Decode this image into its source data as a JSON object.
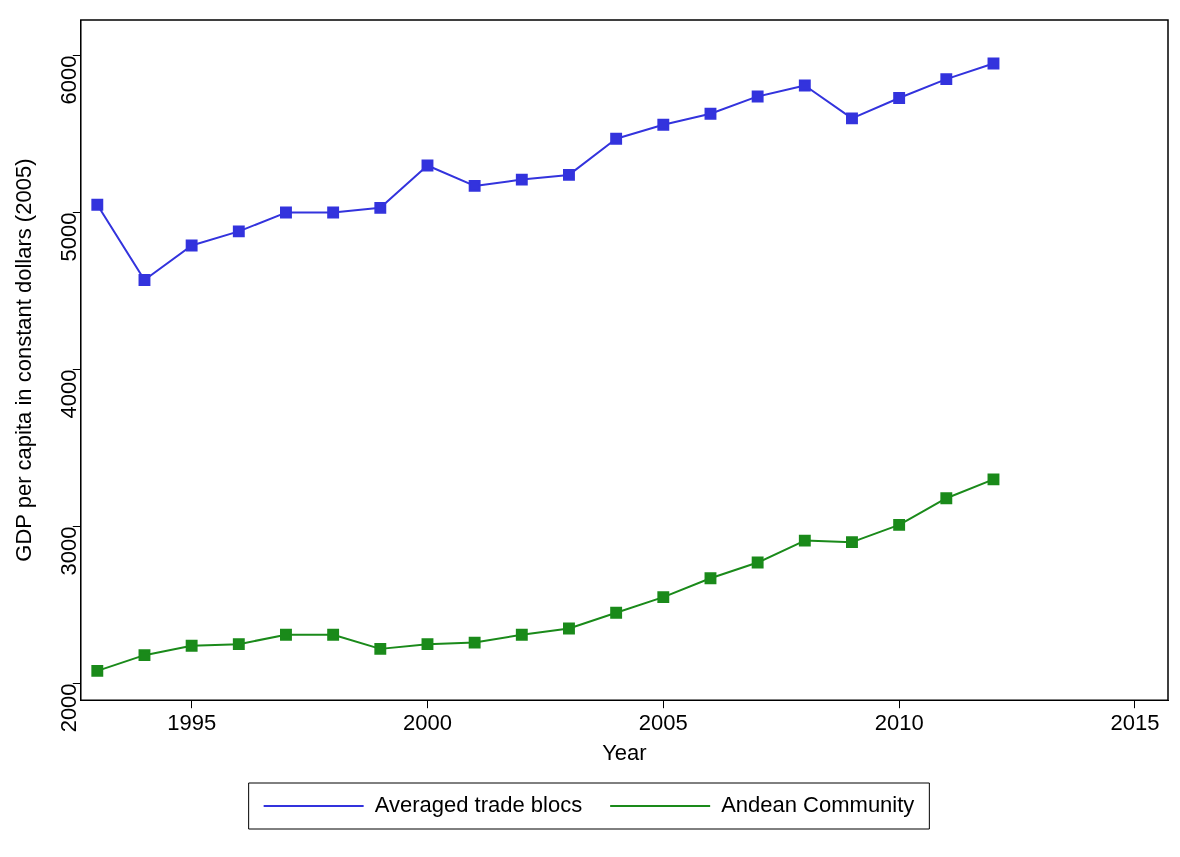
{
  "chart_data": {
    "type": "line",
    "xlabel": "Year",
    "ylabel": "GDP per capita in constant dollars (2005)",
    "x": [
      1993,
      1994,
      1995,
      1996,
      1997,
      1998,
      1999,
      2000,
      2001,
      2002,
      2003,
      2004,
      2005,
      2006,
      2007,
      2008,
      2009,
      2010,
      2011,
      2012
    ],
    "series": [
      {
        "name": "Averaged trade blocs",
        "color": "#3333dd",
        "values": [
          5050,
          4570,
          4790,
          4880,
          5000,
          5000,
          5030,
          5300,
          5170,
          5210,
          5240,
          5470,
          5560,
          5630,
          5740,
          5810,
          5600,
          5730,
          5850,
          5950
        ]
      },
      {
        "name": "Andean Community",
        "color": "#1a8a1a",
        "values": [
          2080,
          2180,
          2240,
          2250,
          2310,
          2310,
          2220,
          2250,
          2260,
          2310,
          2350,
          2450,
          2550,
          2670,
          2770,
          2910,
          2900,
          3010,
          3180,
          3300
        ]
      }
    ],
    "xlim": [
      1992.65,
      2015.7
    ],
    "xticks": [
      1995,
      2000,
      2005,
      2010,
      2015
    ],
    "ylim": [
      1893,
      6227
    ],
    "yticks": [
      2000,
      3000,
      4000,
      5000,
      6000
    ],
    "grid": false,
    "legend": "bottom",
    "marker": "square",
    "line_style": "solid"
  }
}
